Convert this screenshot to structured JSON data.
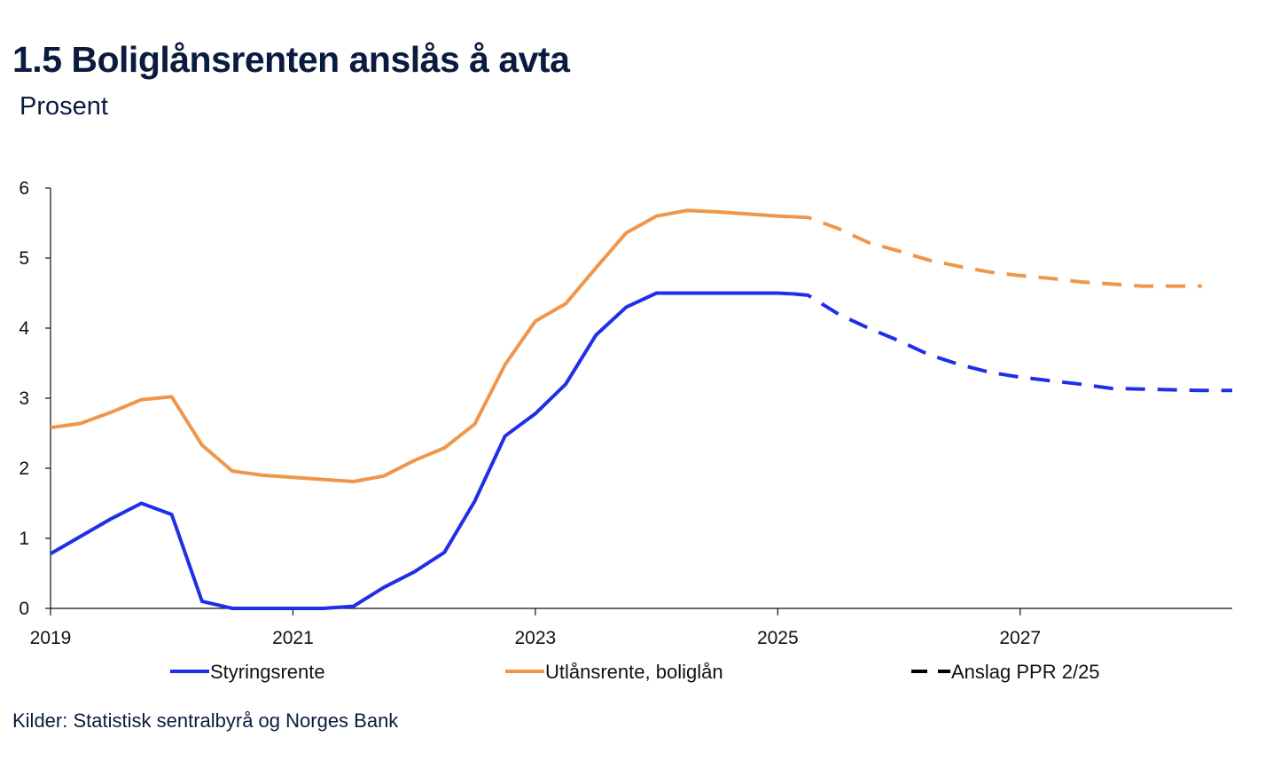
{
  "title": "1.5 Boliglånsrenten anslås å avta",
  "subtitle": "Prosent",
  "source": "Kilder: Statistisk sentralbyrå og Norges Bank",
  "chart_data": {
    "type": "line",
    "x_unit": "year",
    "xlim": [
      2019.0,
      2028.75
    ],
    "ylim": [
      0,
      6
    ],
    "y_ticks": [
      0,
      1,
      2,
      3,
      4,
      5,
      6
    ],
    "x_ticks": [
      2019,
      2021,
      2023,
      2025,
      2027
    ],
    "x_tick_labels": [
      "2019",
      "2021",
      "2023",
      "2025",
      "2027"
    ],
    "grid": false,
    "legend_position": "bottom",
    "series": [
      {
        "name": "Styringsrente",
        "color": "#1f2fe8",
        "points": [
          [
            2019.0,
            0.78
          ],
          [
            2019.25,
            1.03
          ],
          [
            2019.5,
            1.28
          ],
          [
            2019.75,
            1.5
          ],
          [
            2020.0,
            1.34
          ],
          [
            2020.25,
            0.1
          ],
          [
            2020.5,
            0.0
          ],
          [
            2020.75,
            0.0
          ],
          [
            2021.0,
            0.0
          ],
          [
            2021.25,
            0.0
          ],
          [
            2021.5,
            0.03
          ],
          [
            2021.75,
            0.3
          ],
          [
            2022.0,
            0.52
          ],
          [
            2022.25,
            0.8
          ],
          [
            2022.5,
            1.53
          ],
          [
            2022.75,
            2.46
          ],
          [
            2023.0,
            2.78
          ],
          [
            2023.25,
            3.2
          ],
          [
            2023.5,
            3.9
          ],
          [
            2023.75,
            4.3
          ],
          [
            2024.0,
            4.5
          ],
          [
            2024.25,
            4.5
          ],
          [
            2024.5,
            4.5
          ],
          [
            2024.75,
            4.5
          ],
          [
            2025.0,
            4.5
          ],
          [
            2025.12,
            4.49
          ]
        ],
        "forecast": [
          [
            2025.12,
            4.49
          ],
          [
            2025.25,
            4.47
          ],
          [
            2025.5,
            4.2
          ],
          [
            2025.75,
            4.0
          ],
          [
            2026.0,
            3.82
          ],
          [
            2026.25,
            3.62
          ],
          [
            2026.5,
            3.48
          ],
          [
            2026.75,
            3.37
          ],
          [
            2027.0,
            3.3
          ],
          [
            2027.25,
            3.25
          ],
          [
            2027.5,
            3.2
          ],
          [
            2027.75,
            3.14
          ],
          [
            2028.0,
            3.13
          ],
          [
            2028.25,
            3.12
          ],
          [
            2028.5,
            3.11
          ],
          [
            2028.75,
            3.11
          ]
        ]
      },
      {
        "name": "Utlånsrente, boliglån",
        "color": "#f0964a",
        "points": [
          [
            2019.0,
            2.58
          ],
          [
            2019.25,
            2.64
          ],
          [
            2019.5,
            2.8
          ],
          [
            2019.75,
            2.98
          ],
          [
            2020.0,
            3.02
          ],
          [
            2020.25,
            2.33
          ],
          [
            2020.5,
            1.96
          ],
          [
            2020.75,
            1.9
          ],
          [
            2021.0,
            1.87
          ],
          [
            2021.25,
            1.84
          ],
          [
            2021.5,
            1.81
          ],
          [
            2021.75,
            1.89
          ],
          [
            2022.0,
            2.11
          ],
          [
            2022.25,
            2.29
          ],
          [
            2022.5,
            2.63
          ],
          [
            2022.75,
            3.48
          ],
          [
            2023.0,
            4.1
          ],
          [
            2023.25,
            4.35
          ],
          [
            2023.5,
            4.86
          ],
          [
            2023.75,
            5.36
          ],
          [
            2024.0,
            5.6
          ],
          [
            2024.25,
            5.68
          ],
          [
            2024.5,
            5.66
          ],
          [
            2024.75,
            5.63
          ],
          [
            2025.0,
            5.6
          ],
          [
            2025.12,
            5.59
          ]
        ],
        "forecast": [
          [
            2025.12,
            5.59
          ],
          [
            2025.25,
            5.58
          ],
          [
            2025.5,
            5.42
          ],
          [
            2025.75,
            5.22
          ],
          [
            2026.0,
            5.1
          ],
          [
            2026.25,
            4.97
          ],
          [
            2026.5,
            4.88
          ],
          [
            2026.75,
            4.8
          ],
          [
            2027.0,
            4.75
          ],
          [
            2027.25,
            4.71
          ],
          [
            2027.5,
            4.66
          ],
          [
            2027.75,
            4.63
          ],
          [
            2028.0,
            4.6
          ],
          [
            2028.25,
            4.6
          ],
          [
            2028.5,
            4.6
          ]
        ]
      }
    ],
    "legend": [
      {
        "label": "Styringsrente",
        "style": "solid",
        "color": "#1f2fe8"
      },
      {
        "label": "Utlånsrente, boliglån",
        "style": "solid",
        "color": "#f0964a"
      },
      {
        "label": "Anslag PPR 2/25",
        "style": "dashed",
        "color": "#000000"
      }
    ]
  }
}
